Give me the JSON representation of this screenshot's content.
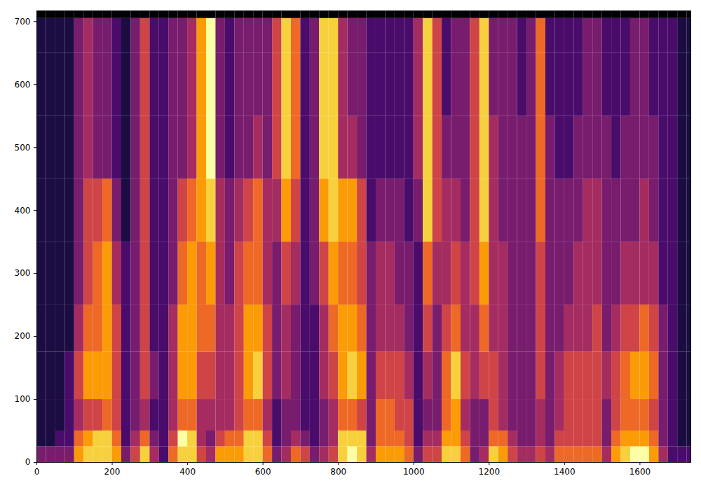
{
  "chart_data": {
    "type": "heatmap",
    "color": "inferno",
    "xlim": [
      0,
      1735
    ],
    "ylim": [
      0,
      717
    ],
    "xticks": [
      0,
      200,
      400,
      600,
      800,
      1000,
      1200,
      1400,
      1600
    ],
    "yticks": [
      0,
      100,
      200,
      300,
      400,
      500,
      600,
      700
    ],
    "x_bins": [
      0,
      25,
      50,
      75,
      100,
      125,
      150,
      175,
      200,
      225,
      250,
      275,
      300,
      325,
      350,
      375,
      400,
      425,
      450,
      475,
      500,
      525,
      550,
      575,
      600,
      625,
      650,
      675,
      700,
      725,
      750,
      775,
      800,
      825,
      850,
      875,
      900,
      925,
      950,
      975,
      1000,
      1025,
      1050,
      1075,
      1100,
      1125,
      1150,
      1175,
      1200,
      1225,
      1250,
      1275,
      1300,
      1325,
      1350,
      1375,
      1400,
      1425,
      1450,
      1475,
      1500,
      1525,
      1550,
      1575,
      1600,
      1625,
      1650,
      1675,
      1700,
      1725,
      1735
    ],
    "y_bins": [
      0,
      25,
      50,
      100,
      175,
      250,
      350,
      450,
      550,
      650,
      705,
      717
    ],
    "cells": [
      [
        3,
        3,
        3,
        3,
        7,
        8,
        8,
        8,
        7,
        3,
        5,
        8,
        4,
        2,
        6,
        8,
        8,
        5,
        4,
        7,
        7,
        7,
        8,
        8,
        6,
        3,
        4,
        6,
        5,
        3,
        4,
        5,
        8,
        9,
        8,
        4,
        7,
        7,
        7,
        6,
        3,
        5,
        5,
        8,
        8,
        6,
        3,
        4,
        8,
        7,
        5,
        4,
        4,
        5,
        4,
        6,
        6,
        6,
        6,
        6,
        4,
        7,
        8,
        9,
        9,
        7,
        4,
        2,
        2,
        2
      ],
      [
        1,
        1,
        2,
        2,
        6,
        7,
        8,
        8,
        6,
        2,
        4,
        6,
        3,
        2,
        5,
        9,
        8,
        4,
        3,
        5,
        6,
        6,
        8,
        8,
        5,
        2,
        3,
        4,
        3,
        2,
        3,
        4,
        8,
        8,
        8,
        3,
        6,
        6,
        6,
        5,
        2,
        4,
        4,
        7,
        7,
        5,
        3,
        3,
        6,
        6,
        4,
        3,
        3,
        4,
        3,
        5,
        5,
        5,
        5,
        5,
        3,
        6,
        7,
        7,
        7,
        6,
        3,
        2,
        1,
        1
      ],
      [
        1,
        1,
        1,
        2,
        4,
        5,
        5,
        6,
        5,
        2,
        3,
        4,
        2,
        2,
        4,
        6,
        6,
        4,
        4,
        4,
        4,
        5,
        6,
        6,
        4,
        2,
        3,
        3,
        2,
        2,
        3,
        4,
        6,
        6,
        5,
        3,
        6,
        6,
        5,
        5,
        2,
        3,
        3,
        6,
        7,
        4,
        3,
        3,
        5,
        4,
        3,
        3,
        3,
        4,
        3,
        4,
        5,
        5,
        5,
        5,
        3,
        5,
        6,
        6,
        6,
        5,
        3,
        2,
        1,
        1
      ],
      [
        1,
        1,
        1,
        2,
        5,
        7,
        7,
        7,
        5,
        2,
        3,
        5,
        3,
        2,
        4,
        7,
        7,
        5,
        5,
        4,
        4,
        5,
        7,
        8,
        5,
        3,
        4,
        3,
        2,
        2,
        4,
        5,
        7,
        8,
        7,
        3,
        5,
        5,
        5,
        4,
        2,
        4,
        3,
        6,
        8,
        5,
        4,
        5,
        5,
        4,
        3,
        3,
        3,
        5,
        3,
        4,
        5,
        5,
        5,
        5,
        4,
        5,
        6,
        7,
        7,
        6,
        3,
        2,
        1,
        1
      ],
      [
        1,
        1,
        1,
        1,
        4,
        6,
        6,
        7,
        5,
        2,
        3,
        5,
        2,
        2,
        4,
        7,
        7,
        6,
        6,
        4,
        4,
        5,
        7,
        7,
        5,
        3,
        4,
        3,
        2,
        2,
        4,
        6,
        7,
        7,
        6,
        3,
        4,
        4,
        4,
        3,
        2,
        5,
        3,
        5,
        6,
        4,
        4,
        6,
        4,
        4,
        3,
        3,
        3,
        5,
        3,
        3,
        4,
        4,
        4,
        5,
        3,
        4,
        5,
        5,
        6,
        5,
        3,
        2,
        1,
        1
      ],
      [
        1,
        1,
        1,
        1,
        3,
        5,
        6,
        7,
        4,
        2,
        3,
        5,
        2,
        2,
        3,
        6,
        7,
        6,
        7,
        4,
        3,
        5,
        6,
        6,
        4,
        3,
        5,
        4,
        2,
        3,
        5,
        7,
        6,
        6,
        5,
        3,
        4,
        4,
        3,
        3,
        2,
        6,
        4,
        4,
        5,
        4,
        5,
        7,
        4,
        4,
        3,
        3,
        3,
        5,
        3,
        3,
        3,
        4,
        4,
        4,
        3,
        3,
        4,
        4,
        4,
        4,
        2,
        2,
        1,
        1
      ],
      [
        1,
        1,
        1,
        1,
        3,
        5,
        5,
        6,
        3,
        1,
        3,
        5,
        2,
        2,
        3,
        5,
        6,
        7,
        8,
        4,
        3,
        4,
        5,
        6,
        4,
        4,
        7,
        5,
        2,
        3,
        7,
        8,
        7,
        7,
        5,
        2,
        3,
        3,
        3,
        2,
        3,
        8,
        5,
        4,
        4,
        3,
        5,
        8,
        4,
        3,
        3,
        3,
        3,
        6,
        3,
        3,
        3,
        3,
        4,
        4,
        3,
        3,
        3,
        3,
        4,
        3,
        2,
        2,
        1,
        1
      ],
      [
        1,
        1,
        1,
        1,
        3,
        4,
        3,
        3,
        2,
        1,
        3,
        5,
        2,
        2,
        3,
        3,
        4,
        7,
        9,
        3,
        2,
        3,
        3,
        4,
        3,
        5,
        8,
        6,
        2,
        3,
        8,
        8,
        4,
        4,
        3,
        2,
        2,
        2,
        2,
        2,
        4,
        8,
        5,
        3,
        3,
        3,
        5,
        8,
        4,
        3,
        3,
        3,
        3,
        6,
        3,
        2,
        2,
        3,
        3,
        3,
        3,
        2,
        3,
        3,
        3,
        3,
        2,
        2,
        1,
        1
      ],
      [
        1,
        1,
        1,
        1,
        3,
        4,
        3,
        3,
        2,
        1,
        3,
        5,
        2,
        2,
        3,
        3,
        4,
        7,
        9,
        3,
        2,
        3,
        3,
        3,
        3,
        5,
        8,
        6,
        2,
        3,
        8,
        8,
        4,
        3,
        3,
        2,
        2,
        2,
        2,
        2,
        4,
        8,
        5,
        2,
        3,
        3,
        5,
        8,
        3,
        3,
        3,
        2,
        3,
        6,
        2,
        2,
        2,
        2,
        3,
        3,
        2,
        2,
        2,
        3,
        3,
        2,
        2,
        2,
        1,
        1
      ],
      [
        1,
        1,
        1,
        1,
        3,
        4,
        3,
        3,
        2,
        1,
        3,
        5,
        2,
        2,
        3,
        3,
        4,
        7,
        9,
        3,
        2,
        3,
        3,
        3,
        3,
        5,
        8,
        6,
        2,
        3,
        8,
        8,
        4,
        3,
        3,
        2,
        2,
        2,
        2,
        2,
        4,
        8,
        5,
        2,
        3,
        3,
        5,
        8,
        3,
        3,
        3,
        2,
        3,
        6,
        2,
        2,
        2,
        2,
        3,
        3,
        2,
        2,
        2,
        3,
        3,
        2,
        2,
        2,
        1,
        1
      ],
      [
        0,
        0,
        0,
        0,
        0,
        0,
        0,
        0,
        0,
        0,
        0,
        0,
        0,
        0,
        0,
        0,
        0,
        0,
        0,
        0,
        0,
        0,
        0,
        0,
        0,
        0,
        0,
        0,
        0,
        0,
        0,
        0,
        0,
        0,
        0,
        0,
        0,
        0,
        0,
        0,
        0,
        0,
        0,
        0,
        0,
        0,
        0,
        0,
        0,
        0,
        0,
        0,
        0,
        0,
        0,
        0,
        0,
        0,
        0,
        0,
        0,
        0,
        0,
        0,
        0,
        0,
        0,
        0,
        0,
        0
      ]
    ]
  }
}
